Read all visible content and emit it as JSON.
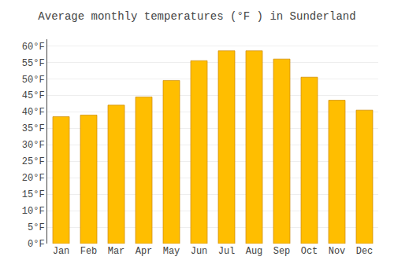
{
  "chart_data": {
    "type": "bar",
    "title": "Average monthly temperatures (°F ) in Sunderland",
    "categories": [
      "Jan",
      "Feb",
      "Mar",
      "Apr",
      "May",
      "Jun",
      "Jul",
      "Aug",
      "Sep",
      "Oct",
      "Nov",
      "Dec"
    ],
    "values": [
      38.5,
      39.0,
      42.0,
      44.5,
      49.5,
      55.5,
      58.5,
      58.5,
      56.0,
      50.5,
      43.5,
      40.5
    ],
    "color": "#FFBE00",
    "ylim": [
      0,
      62
    ],
    "yticks": [
      {
        "value": 0,
        "label": "0°F"
      },
      {
        "value": 5,
        "label": "5°F"
      },
      {
        "value": 10,
        "label": "10°F"
      },
      {
        "value": 15,
        "label": "15°F"
      },
      {
        "value": 20,
        "label": "20°F"
      },
      {
        "value": 25,
        "label": "25°F"
      },
      {
        "value": 30,
        "label": "30°F"
      },
      {
        "value": 35,
        "label": "35°F"
      },
      {
        "value": 40,
        "label": "40°F"
      },
      {
        "value": 45,
        "label": "45°F"
      },
      {
        "value": 50,
        "label": "50°F"
      },
      {
        "value": 55,
        "label": "55°F"
      },
      {
        "value": 60,
        "label": "60°F"
      }
    ],
    "grid": true
  }
}
